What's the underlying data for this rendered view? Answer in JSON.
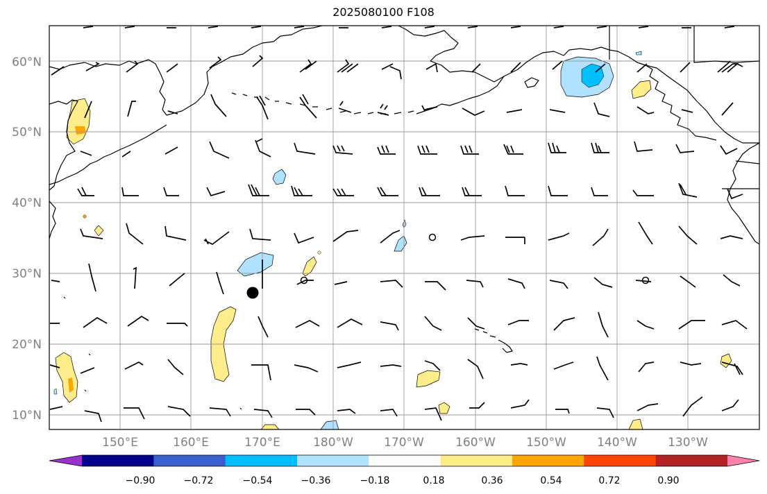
{
  "title": "2025080100 F108",
  "lat_labels": [
    "60°N",
    "50°N",
    "40°N",
    "30°N",
    "20°N",
    "10°N"
  ],
  "lon_labels": [
    "150°E",
    "160°E",
    "170°E",
    "180°W",
    "170°W",
    "160°W",
    "150°W",
    "140°W",
    "130°W"
  ],
  "colorbar": {
    "ticks": [
      "−0.90",
      "−0.72",
      "−0.54",
      "−0.36",
      "−0.18",
      "0.18",
      "0.36",
      "0.54",
      "0.72",
      "0.90"
    ],
    "colors": [
      "#9932cc",
      "#00008b",
      "#3a5fcd",
      "#00bfff",
      "#b0e2ff",
      "#ffffff",
      "#ffec8b",
      "#ffa500",
      "#ff4500",
      "#b22222",
      "#ff82ab"
    ]
  },
  "colors": {
    "gridline": "#9a9a9a",
    "label": "#808080",
    "coastline": "#000000",
    "cyclone_marker": "#000000"
  }
}
